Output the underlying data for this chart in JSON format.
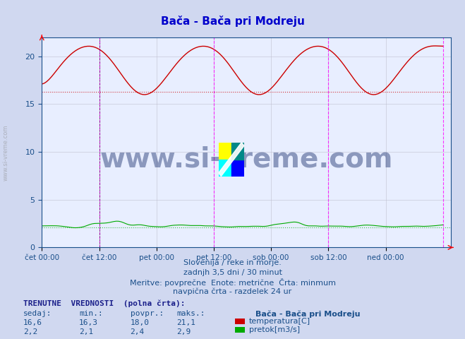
{
  "title": "Bača - Bača pri Modreju",
  "title_color": "#0000cc",
  "bg_color": "#d0d8f0",
  "plot_bg_color": "#e8eeff",
  "grid_color": "#c0c0d0",
  "x_tick_labels": [
    "čet 00:00",
    "čet 12:00",
    "pet 00:00",
    "pet 12:00",
    "sob 00:00",
    "sob 12:00",
    "ned 00:00"
  ],
  "x_tick_positions": [
    0,
    0.1429,
    0.2857,
    0.4286,
    0.5714,
    0.7143,
    0.8571
  ],
  "ylim": [
    0,
    22
  ],
  "yticks": [
    0,
    5,
    10,
    15,
    20
  ],
  "temp_min_line": 16.3,
  "flow_min_line": 2.1,
  "vertical_lines_magenta": [
    0.1429,
    0.4286,
    0.7143,
    1.0
  ],
  "vertical_line_black_dashed": 0.1429,
  "subtitle_lines": [
    "Slovenija / reke in morje.",
    "zadnjh 3,5 dni / 30 minut",
    "Meritve: povprečne  Enote: metrične  Črta: minmum",
    "navpična črta - razdelek 24 ur"
  ],
  "footer_bold": "TRENUTNE  VREDNOSTI  (polna črta):",
  "footer_cols": [
    "sedaj:",
    "min.:",
    "povpr.:",
    "maks.:"
  ],
  "footer_temp": [
    "16,6",
    "16,3",
    "18,0",
    "21,1"
  ],
  "footer_flow": [
    "2,2",
    "2,1",
    "2,4",
    "2,9"
  ],
  "legend_station": "Bača - Bača pri Modreju",
  "legend_temp": "temperatura[C]",
  "legend_flow": "pretok[m3/s]",
  "temp_color": "#cc0000",
  "flow_color": "#00aa00",
  "watermark_text": "www.si-vreme.com",
  "watermark_color": "#1a2f6e",
  "watermark_alpha": 0.45,
  "axis_label_color": "#1a4f8a",
  "tick_label_color": "#1a4f8a",
  "subtitle_color": "#1a4f8a",
  "footer_color": "#1a4f8a",
  "footer_bold_color": "#1a1f8a"
}
